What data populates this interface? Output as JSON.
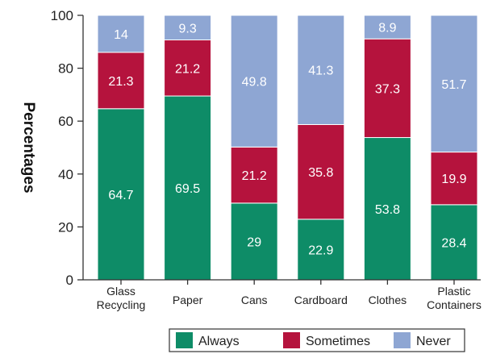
{
  "chart_data": {
    "type": "bar",
    "stacked": true,
    "title": "",
    "xlabel": "",
    "ylabel": "Percentages",
    "ylim": [
      0,
      100
    ],
    "yticks": [
      0,
      20,
      40,
      60,
      80,
      100
    ],
    "grid": false,
    "legend_position": "bottom-right",
    "categories": [
      [
        "Glass",
        "Recycling"
      ],
      [
        "Paper"
      ],
      [
        "Cans"
      ],
      [
        "Cardboard"
      ],
      [
        "Clothes"
      ],
      [
        "Plastic",
        "Containers"
      ]
    ],
    "series": [
      {
        "name": "Always",
        "color": "#0e8c67",
        "values": [
          64.7,
          69.5,
          29,
          22.9,
          53.8,
          28.4
        ]
      },
      {
        "name": "Sometimes",
        "color": "#b5133d",
        "values": [
          21.3,
          21.2,
          21.2,
          35.8,
          37.3,
          19.9
        ]
      },
      {
        "name": "Never",
        "color": "#8ea6d3",
        "values": [
          14,
          9.3,
          49.8,
          41.3,
          8.9,
          51.7
        ]
      }
    ]
  }
}
